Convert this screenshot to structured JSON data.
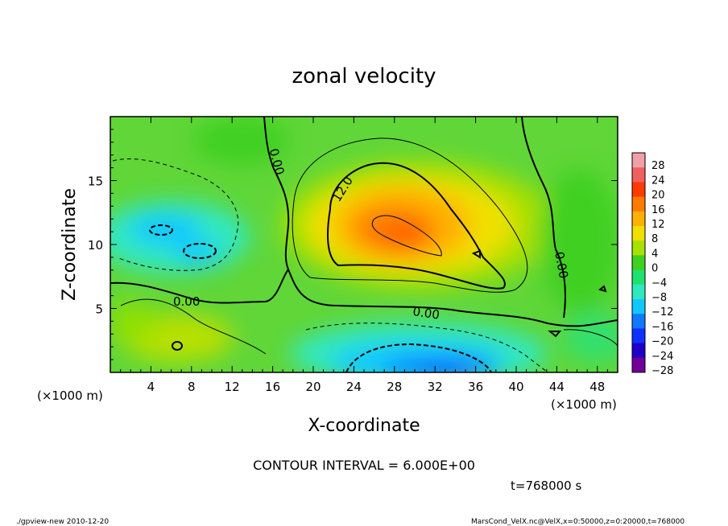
{
  "chart_data": {
    "type": "heatmap",
    "title": "zonal velocity",
    "xlabel": "X-coordinate",
    "ylabel": "Z-coordinate",
    "x_unit_left": "(×1000 m)",
    "x_unit_right": "(×1000 m)",
    "xlim": [
      0,
      50
    ],
    "ylim": [
      0,
      20
    ],
    "x_ticks": [
      "4",
      "8",
      "12",
      "16",
      "20",
      "24",
      "28",
      "32",
      "36",
      "40",
      "44",
      "48"
    ],
    "x_tick_values": [
      4,
      8,
      12,
      16,
      20,
      24,
      28,
      32,
      36,
      40,
      44,
      48
    ],
    "y_ticks": [
      "5",
      "10",
      "15"
    ],
    "y_tick_values": [
      5,
      10,
      15
    ],
    "colorbar": {
      "labels": [
        "28",
        "24",
        "20",
        "16",
        "12",
        "8",
        "4",
        "0",
        "−4",
        "−8",
        "−12",
        "−16",
        "−20",
        "−24",
        "−28"
      ],
      "colors": [
        "#f0a0a8",
        "#f06060",
        "#ff3a00",
        "#ff7a00",
        "#ffb000",
        "#f0e000",
        "#a8e000",
        "#40d020",
        "#20e070",
        "#30e8c0",
        "#10c8ff",
        "#1078ff",
        "#1030ff",
        "#2000c8",
        "#700098"
      ]
    },
    "contour_labels": [
      "0.00",
      "12.0",
      "0.00",
      "0.00",
      "0.00"
    ],
    "contour_interval_text": "CONTOUR INTERVAL = 6.000E+00",
    "time_text": "t=768000 s",
    "footer_left": "./gpview-new  2010-12-20",
    "footer_right": "MarsCond_VelX.nc@VelX,x=0:50000,z=0:20000,t=768000"
  }
}
